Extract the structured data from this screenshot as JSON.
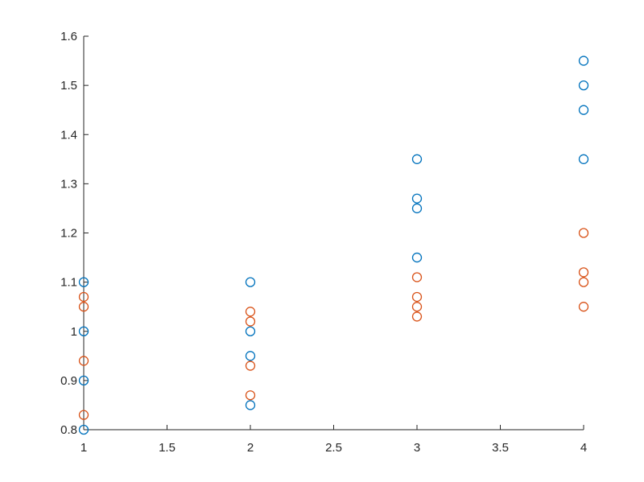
{
  "chart_data": {
    "type": "scatter",
    "title": "",
    "xlabel": "",
    "ylabel": "",
    "xlim": [
      1,
      4
    ],
    "ylim": [
      0.8,
      1.6
    ],
    "grid": false,
    "x_ticks": [
      "1",
      "1.5",
      "2",
      "2.5",
      "3",
      "3.5",
      "4"
    ],
    "y_ticks": [
      "0.8",
      "0.9",
      "1",
      "1.1",
      "1.2",
      "1.3",
      "1.4",
      "1.5",
      "1.6"
    ],
    "series": [
      {
        "color": "#0072BD",
        "marker": "circle",
        "points": [
          {
            "x": 1,
            "y": 0.8
          },
          {
            "x": 1,
            "y": 0.9
          },
          {
            "x": 1,
            "y": 1.0
          },
          {
            "x": 1,
            "y": 1.1
          },
          {
            "x": 2,
            "y": 0.85
          },
          {
            "x": 2,
            "y": 0.95
          },
          {
            "x": 2,
            "y": 1.0
          },
          {
            "x": 2,
            "y": 1.1
          },
          {
            "x": 3,
            "y": 1.15
          },
          {
            "x": 3,
            "y": 1.25
          },
          {
            "x": 3,
            "y": 1.27
          },
          {
            "x": 3,
            "y": 1.35
          },
          {
            "x": 4,
            "y": 1.35
          },
          {
            "x": 4,
            "y": 1.45
          },
          {
            "x": 4,
            "y": 1.5
          },
          {
            "x": 4,
            "y": 1.55
          }
        ]
      },
      {
        "color": "#D95319",
        "marker": "circle",
        "points": [
          {
            "x": 1,
            "y": 0.83
          },
          {
            "x": 1,
            "y": 0.94
          },
          {
            "x": 1,
            "y": 1.05
          },
          {
            "x": 1,
            "y": 1.07
          },
          {
            "x": 2,
            "y": 0.87
          },
          {
            "x": 2,
            "y": 0.93
          },
          {
            "x": 2,
            "y": 1.02
          },
          {
            "x": 2,
            "y": 1.04
          },
          {
            "x": 3,
            "y": 1.03
          },
          {
            "x": 3,
            "y": 1.05
          },
          {
            "x": 3,
            "y": 1.07
          },
          {
            "x": 3,
            "y": 1.11
          },
          {
            "x": 4,
            "y": 1.05
          },
          {
            "x": 4,
            "y": 1.1
          },
          {
            "x": 4,
            "y": 1.12
          },
          {
            "x": 4,
            "y": 1.2
          }
        ]
      }
    ]
  }
}
